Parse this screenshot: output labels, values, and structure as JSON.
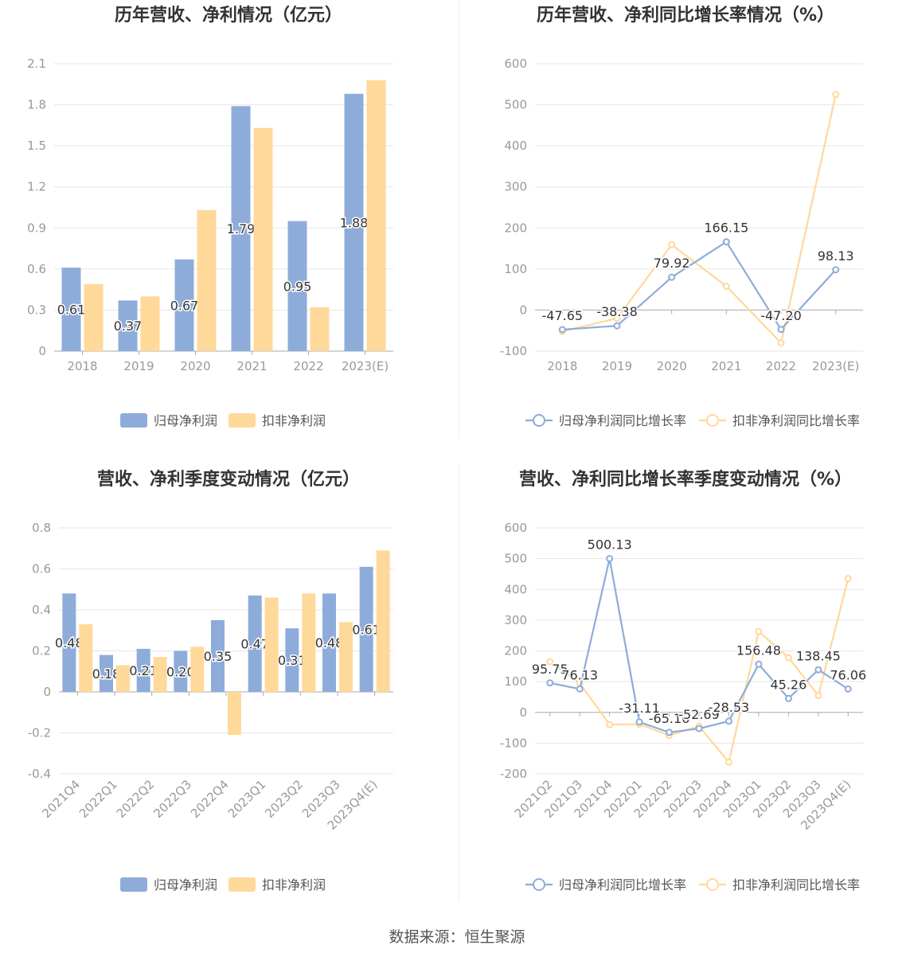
{
  "colors": {
    "net_profit": "#8eacd9",
    "deducted_profit": "#ffd99a",
    "axis": "#999999",
    "grid": "#e6e6e6",
    "title": "#333333"
  },
  "source": "数据来源：恒生聚源",
  "chart_data": [
    {
      "id": "annual-profit",
      "type": "bar",
      "title": "历年营收、净利情况（亿元）",
      "categories": [
        "2018",
        "2019",
        "2020",
        "2021",
        "2022",
        "2023(E)"
      ],
      "series": [
        {
          "name": "归母净利润",
          "values": [
            0.61,
            0.37,
            0.67,
            1.79,
            0.95,
            1.88
          ],
          "labels": [
            "0.61",
            "0.37",
            "0.67",
            "1.79",
            "0.95",
            "1.88"
          ]
        },
        {
          "name": "扣非净利润",
          "values": [
            0.49,
            0.4,
            1.03,
            1.63,
            0.32,
            1.98
          ]
        }
      ],
      "ylim": [
        0,
        2.1
      ],
      "yticks": [
        "0",
        "0.3",
        "0.6",
        "0.9",
        "1.2",
        "1.5",
        "1.8",
        "2.1"
      ],
      "grid": true,
      "legend": "bottom"
    },
    {
      "id": "annual-growth",
      "type": "line",
      "title": "历年营收、净利同比增长率情况（%）",
      "categories": [
        "2018",
        "2019",
        "2020",
        "2021",
        "2022",
        "2023(E)"
      ],
      "series": [
        {
          "name": "归母净利润同比增长率",
          "values": [
            -47.65,
            -38.38,
            79.92,
            166.15,
            -47.2,
            98.13
          ],
          "labels": [
            "-47.65",
            "-38.38",
            "79.92",
            "166.15",
            "-47.20",
            "98.13"
          ]
        },
        {
          "name": "扣非净利润同比增长率",
          "values": [
            -52,
            -20,
            159,
            58,
            -80,
            525
          ]
        }
      ],
      "ylim": [
        -100,
        600
      ],
      "yticks": [
        "-100",
        "0",
        "100",
        "200",
        "300",
        "400",
        "500",
        "600"
      ],
      "grid": true,
      "legend": "bottom"
    },
    {
      "id": "quarterly-profit",
      "type": "bar",
      "title": "营收、净利季度变动情况（亿元）",
      "categories": [
        "2021Q4",
        "2022Q1",
        "2022Q2",
        "2022Q3",
        "2022Q4",
        "2023Q1",
        "2023Q2",
        "2023Q3",
        "2023Q4(E)"
      ],
      "series": [
        {
          "name": "归母净利润",
          "values": [
            0.48,
            0.18,
            0.21,
            0.2,
            0.35,
            0.47,
            0.31,
            0.48,
            0.61
          ],
          "labels": [
            "0.48",
            "0.18",
            "0.21",
            "0.20",
            "0.35",
            "0.47",
            "0.31",
            "0.48",
            "0.61"
          ]
        },
        {
          "name": "扣非净利润",
          "values": [
            0.33,
            0.13,
            0.17,
            0.22,
            -0.21,
            0.46,
            0.48,
            0.34,
            0.69
          ]
        }
      ],
      "ylim": [
        -0.4,
        0.8
      ],
      "yticks": [
        "-0.4",
        "-0.2",
        "0",
        "0.2",
        "0.4",
        "0.6",
        "0.8"
      ],
      "grid": true,
      "legend": "bottom"
    },
    {
      "id": "quarterly-growth",
      "type": "line",
      "title": "营收、净利同比增长率季度变动情况（%）",
      "categories": [
        "2021Q2",
        "2021Q3",
        "2021Q4",
        "2022Q1",
        "2022Q2",
        "2022Q3",
        "2022Q4",
        "2023Q1",
        "2023Q2",
        "2023Q3",
        "2023Q4(E)"
      ],
      "series": [
        {
          "name": "归母净利润同比增长率",
          "values": [
            95.75,
            76.13,
            500.13,
            -31.11,
            -65.16,
            -52.69,
            -28.53,
            156.48,
            45.26,
            138.45,
            76.06
          ],
          "labels": [
            "95.75",
            "76.13",
            "500.13",
            "-31.11",
            "-65.16",
            "-52.69",
            "-28.53",
            "156.48",
            "45.26",
            "138.45",
            "76.06"
          ]
        },
        {
          "name": "扣非净利润同比增长率",
          "values": [
            165,
            95,
            -40,
            -38,
            -75,
            -45,
            -162,
            263,
            178,
            55,
            435
          ]
        }
      ],
      "ylim": [
        -200,
        600
      ],
      "yticks": [
        "-200",
        "-100",
        "0",
        "100",
        "200",
        "300",
        "400",
        "500",
        "600"
      ],
      "grid": true,
      "legend": "bottom"
    }
  ]
}
